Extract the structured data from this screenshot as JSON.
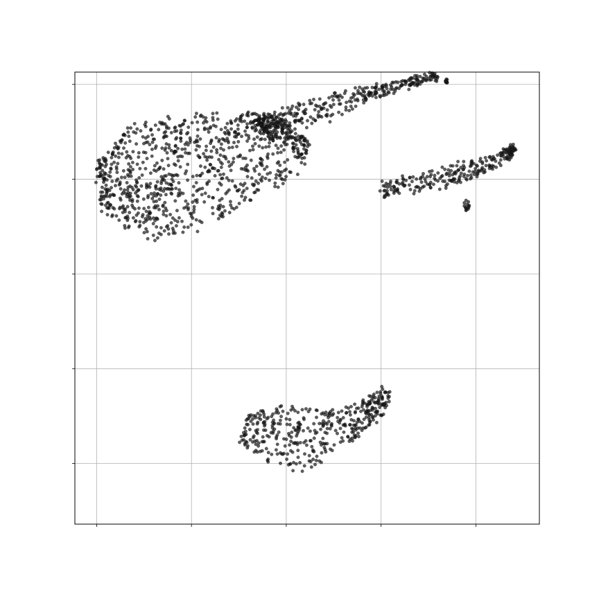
{
  "chart_data": {
    "type": "scatter",
    "title": "",
    "xlabel": "",
    "ylabel": "",
    "xlim": [
      -0.23,
      4.67
    ],
    "ylim": [
      -0.64,
      4.13
    ],
    "xticks": [
      0,
      1,
      2,
      3,
      4
    ],
    "yticks": [
      0,
      1,
      2,
      3,
      4
    ],
    "tick_labels_visible": false,
    "grid": true,
    "legend": "none",
    "marker_color": "#1a1a1a",
    "marker_opacity": 0.7,
    "clusters": [
      {
        "shape": "band",
        "count": 1000,
        "spine_x": [
          0.02,
          0.4,
          0.9,
          1.4,
          1.9,
          2.05
        ],
        "spine_y": [
          2.9,
          2.95,
          3.05,
          3.2,
          3.35,
          3.55
        ],
        "half_width": [
          0.22,
          0.6,
          0.62,
          0.52,
          0.38,
          0.25
        ]
      },
      {
        "shape": "band",
        "count": 300,
        "spine_x": [
          1.7,
          2.1,
          2.5,
          2.9,
          3.3,
          3.6
        ],
        "spine_y": [
          3.6,
          3.65,
          3.78,
          3.92,
          4.02,
          4.09
        ],
        "half_width": [
          0.06,
          0.12,
          0.13,
          0.07,
          0.05,
          0.03
        ]
      },
      {
        "shape": "band",
        "count": 250,
        "spine_x": [
          3.0,
          3.3,
          3.7,
          4.0,
          4.3,
          4.4
        ],
        "spine_y": [
          2.88,
          2.95,
          3.02,
          3.12,
          3.24,
          3.33
        ],
        "half_width": [
          0.07,
          0.09,
          0.1,
          0.09,
          0.06,
          0.03
        ]
      },
      {
        "shape": "band",
        "count": 420,
        "spine_x": [
          1.55,
          1.85,
          2.15,
          2.5,
          2.85,
          3.08
        ],
        "spine_y": [
          0.38,
          0.3,
          0.26,
          0.35,
          0.52,
          0.75
        ],
        "half_width": [
          0.15,
          0.3,
          0.34,
          0.24,
          0.14,
          0.06
        ]
      },
      {
        "shape": "blob",
        "count": 30,
        "cx": 0.55,
        "cy": 2.75,
        "rx": 0.35,
        "ry": 0.28
      },
      {
        "shape": "blob",
        "count": 12,
        "cx": 3.69,
        "cy": 4.03,
        "rx": 0.01,
        "ry": 0.05
      },
      {
        "shape": "blob",
        "count": 14,
        "cx": 3.9,
        "cy": 2.72,
        "rx": 0.03,
        "ry": 0.06
      }
    ]
  }
}
